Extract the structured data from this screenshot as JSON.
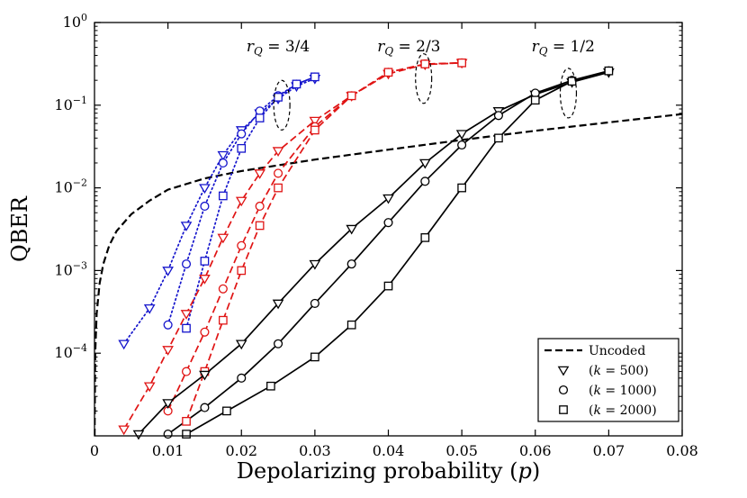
{
  "figure": {
    "background": "#ffffff"
  },
  "chart_data": {
    "type": "line",
    "title": "",
    "xlabel": "Depolarizing probability (*p*)",
    "ylabel": "QBER",
    "x_scale": "linear",
    "y_scale": "log",
    "xlim": [
      0,
      0.08
    ],
    "ylim": [
      1e-05,
      1
    ],
    "x_tick_values": [
      0,
      0.01,
      0.02,
      0.03,
      0.04,
      0.05,
      0.06,
      0.07,
      0.08
    ],
    "x_tick_labels": [
      "0",
      "0.01",
      "0.02",
      "0.03",
      "0.04",
      "0.05",
      "0.06",
      "0.07",
      "0.08"
    ],
    "y_tick_exponents": [
      0,
      -1,
      -2,
      -3,
      -4
    ],
    "grid": false,
    "colors": {
      "rq34": "#1414cc",
      "rq23": "#e01414",
      "rq12": "#000000",
      "uncoded": "#000000"
    },
    "group_labels": [
      {
        "text": "*r*_Q_ = 3/4",
        "x": 0.025,
        "y": 0.45
      },
      {
        "text": "*r*_Q_ = 2/3",
        "x": 0.0428,
        "y": 0.45
      },
      {
        "text": "*r*_Q_ = 1/2",
        "x": 0.0638,
        "y": 0.45
      }
    ],
    "ellipse_annotations": [
      {
        "x": 0.0255,
        "y": 0.1,
        "rx_p": 0.0011,
        "ry_decades": 0.3
      },
      {
        "x": 0.0448,
        "y": 0.21,
        "rx_p": 0.0011,
        "ry_decades": 0.3
      },
      {
        "x": 0.0645,
        "y": 0.14,
        "rx_p": 0.0011,
        "ry_decades": 0.3
      }
    ],
    "legend": {
      "position": "lower-right",
      "entries": [
        {
          "label": "Uncoded",
          "line_style": "dashed",
          "marker": "none"
        },
        {
          "label": "(*k* = 500)",
          "line_style": "none",
          "marker": "triangle-down"
        },
        {
          "label": "(*k* = 1000)",
          "line_style": "none",
          "marker": "circle"
        },
        {
          "label": "(*k* = 2000)",
          "line_style": "none",
          "marker": "square"
        }
      ]
    },
    "series": [
      {
        "id": "uncoded",
        "label": "Uncoded",
        "group": "uncoded",
        "color": "#000000",
        "line_style": "dashed",
        "line_width": 2.2,
        "marker": "none",
        "x": [
          1e-05,
          0.0001,
          0.0003,
          0.0007,
          0.0012,
          0.002,
          0.003,
          0.005,
          0.0075,
          0.01,
          0.015,
          0.02,
          0.03,
          0.04,
          0.05,
          0.06,
          0.07,
          0.08
        ],
        "y": [
          1e-05,
          0.0001,
          0.0003,
          0.0007,
          0.0012,
          0.002,
          0.003,
          0.0048,
          0.007,
          0.0095,
          0.013,
          0.016,
          0.022,
          0.029,
          0.038,
          0.049,
          0.062,
          0.078
        ]
      },
      {
        "id": "rq34-k500",
        "group": "rq34",
        "rate": "3/4",
        "k": 500,
        "color": "#1414cc",
        "line_style": "dotted",
        "line_width": 1.7,
        "marker": "triangle-down",
        "x": [
          0.004,
          0.0075,
          0.01,
          0.0125,
          0.015,
          0.0175,
          0.02,
          0.0225,
          0.025,
          0.0275,
          0.03
        ],
        "y": [
          0.00013,
          0.00035,
          0.001,
          0.0035,
          0.01,
          0.025,
          0.05,
          0.08,
          0.12,
          0.17,
          0.21
        ]
      },
      {
        "id": "rq34-k1000",
        "group": "rq34",
        "rate": "3/4",
        "k": 1000,
        "color": "#1414cc",
        "line_style": "dotted",
        "line_width": 1.7,
        "marker": "circle",
        "x": [
          0.01,
          0.0125,
          0.015,
          0.0175,
          0.02,
          0.0225,
          0.025,
          0.0275,
          0.03
        ],
        "y": [
          0.00022,
          0.0012,
          0.006,
          0.02,
          0.045,
          0.085,
          0.13,
          0.18,
          0.22
        ]
      },
      {
        "id": "rq34-k2000",
        "group": "rq34",
        "rate": "3/4",
        "k": 2000,
        "color": "#1414cc",
        "line_style": "dotted",
        "line_width": 1.7,
        "marker": "square",
        "x": [
          0.0125,
          0.015,
          0.0175,
          0.02,
          0.0225,
          0.025,
          0.0275,
          0.03
        ],
        "y": [
          0.0002,
          0.0013,
          0.008,
          0.03,
          0.07,
          0.125,
          0.18,
          0.22
        ]
      },
      {
        "id": "rq23-k500",
        "group": "rq23",
        "rate": "2/3",
        "k": 500,
        "color": "#e01414",
        "line_style": "dashed",
        "line_width": 1.7,
        "marker": "triangle-down",
        "x": [
          0.004,
          0.0075,
          0.01,
          0.0125,
          0.015,
          0.0175,
          0.02,
          0.0225,
          0.025,
          0.03,
          0.035,
          0.04,
          0.045,
          0.05
        ],
        "y": [
          1.2e-05,
          4e-05,
          0.00011,
          0.0003,
          0.0008,
          0.0025,
          0.007,
          0.015,
          0.028,
          0.065,
          0.13,
          0.24,
          0.31,
          0.325
        ]
      },
      {
        "id": "rq23-k1000",
        "group": "rq23",
        "rate": "2/3",
        "k": 1000,
        "color": "#e01414",
        "line_style": "dashed",
        "line_width": 1.7,
        "marker": "circle",
        "x": [
          0.01,
          0.0125,
          0.015,
          0.0175,
          0.02,
          0.0225,
          0.025,
          0.03,
          0.035,
          0.04,
          0.045,
          0.05
        ],
        "y": [
          2e-05,
          6e-05,
          0.00018,
          0.0006,
          0.002,
          0.006,
          0.015,
          0.055,
          0.13,
          0.25,
          0.315,
          0.325
        ]
      },
      {
        "id": "rq23-k2000",
        "group": "rq23",
        "rate": "2/3",
        "k": 2000,
        "color": "#e01414",
        "line_style": "dashed",
        "line_width": 1.7,
        "marker": "square",
        "x": [
          0.0125,
          0.015,
          0.0175,
          0.02,
          0.0225,
          0.025,
          0.03,
          0.035,
          0.04,
          0.045,
          0.05
        ],
        "y": [
          1.5e-05,
          6e-05,
          0.00025,
          0.001,
          0.0035,
          0.01,
          0.05,
          0.13,
          0.25,
          0.315,
          0.325
        ]
      },
      {
        "id": "rq12-k500",
        "group": "rq12",
        "rate": "1/2",
        "k": 500,
        "color": "#000000",
        "line_style": "solid",
        "line_width": 1.7,
        "marker": "triangle-down",
        "x": [
          0.006,
          0.01,
          0.015,
          0.02,
          0.025,
          0.03,
          0.035,
          0.04,
          0.045,
          0.05,
          0.055,
          0.06,
          0.065,
          0.07
        ],
        "y": [
          1.05e-05,
          2.5e-05,
          5.5e-05,
          0.00013,
          0.0004,
          0.0012,
          0.0032,
          0.0075,
          0.02,
          0.045,
          0.085,
          0.135,
          0.19,
          0.25
        ]
      },
      {
        "id": "rq12-k1000",
        "group": "rq12",
        "rate": "1/2",
        "k": 1000,
        "color": "#000000",
        "line_style": "solid",
        "line_width": 1.7,
        "marker": "circle",
        "x": [
          0.01,
          0.015,
          0.02,
          0.025,
          0.03,
          0.035,
          0.04,
          0.045,
          0.05,
          0.055,
          0.06,
          0.065,
          0.07
        ],
        "y": [
          1.05e-05,
          2.2e-05,
          5e-05,
          0.00013,
          0.0004,
          0.0012,
          0.0038,
          0.012,
          0.033,
          0.075,
          0.14,
          0.2,
          0.26
        ]
      },
      {
        "id": "rq12-k2000",
        "group": "rq12",
        "rate": "1/2",
        "k": 2000,
        "color": "#000000",
        "line_style": "solid",
        "line_width": 1.7,
        "marker": "square",
        "x": [
          0.0125,
          0.018,
          0.024,
          0.03,
          0.035,
          0.04,
          0.045,
          0.05,
          0.055,
          0.06,
          0.065,
          0.07
        ],
        "y": [
          1.05e-05,
          2e-05,
          4e-05,
          9e-05,
          0.00022,
          0.00065,
          0.0025,
          0.01,
          0.04,
          0.115,
          0.195,
          0.26
        ]
      }
    ]
  }
}
